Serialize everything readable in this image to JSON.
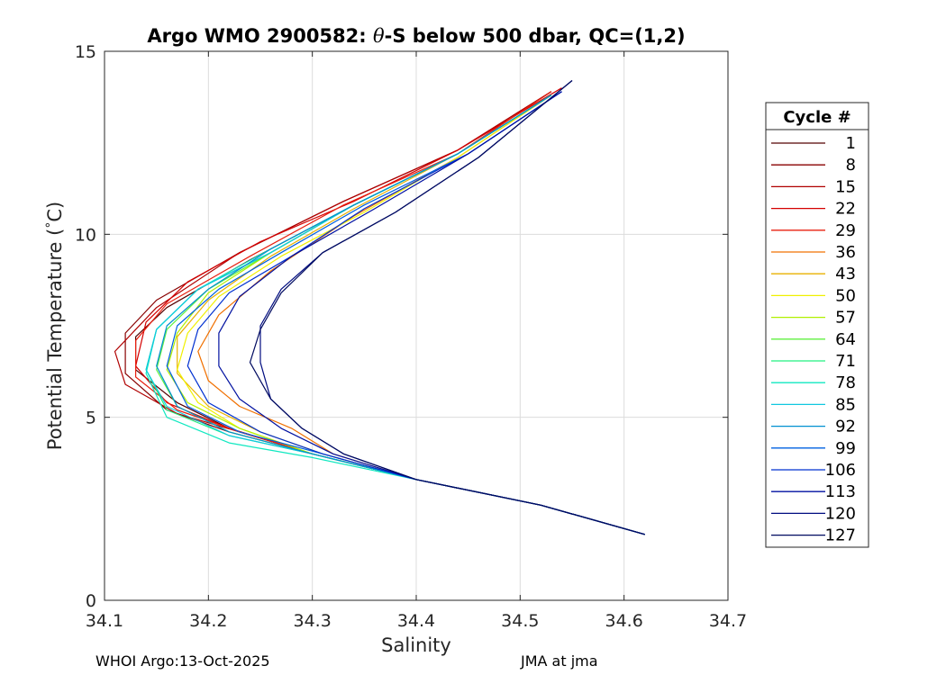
{
  "chart_data": {
    "type": "line",
    "title_prefix": "Argo WMO 2900582: ",
    "title_symbol": "θ",
    "title_suffix": "-S below 500 dbar,  QC=(1,2)",
    "xlabel": "Salinity",
    "ylabel_text": "Potential Temperature (",
    "ylabel_degree": "°",
    "ylabel_unit": "C)",
    "xlim": [
      34.1,
      34.7
    ],
    "ylim": [
      0,
      15
    ],
    "xticks": [
      "34.1",
      "34.2",
      "34.3",
      "34.4",
      "34.5",
      "34.6",
      "34.7"
    ],
    "yticks": [
      "0",
      "5",
      "10",
      "15"
    ],
    "grid": true,
    "legend_title": "Cycle #",
    "legend_position": "right",
    "legend": [
      {
        "name": "1",
        "color": "#550000"
      },
      {
        "name": "8",
        "color": "#880000"
      },
      {
        "name": "15",
        "color": "#b00000"
      },
      {
        "name": "22",
        "color": "#d40000"
      },
      {
        "name": "29",
        "color": "#e82010"
      },
      {
        "name": "36",
        "color": "#f07000"
      },
      {
        "name": "43",
        "color": "#e8b000"
      },
      {
        "name": "50",
        "color": "#f0f000"
      },
      {
        "name": "57",
        "color": "#b0f000"
      },
      {
        "name": "64",
        "color": "#60f040"
      },
      {
        "name": "71",
        "color": "#20f080"
      },
      {
        "name": "78",
        "color": "#10e8c0"
      },
      {
        "name": "85",
        "color": "#10c8e0"
      },
      {
        "name": "92",
        "color": "#0090d0"
      },
      {
        "name": "99",
        "color": "#0060e0"
      },
      {
        "name": "106",
        "color": "#0030d0"
      },
      {
        "name": "113",
        "color": "#0010a0"
      },
      {
        "name": "120",
        "color": "#000c80"
      },
      {
        "name": "127",
        "color": "#000a60"
      }
    ],
    "series": [
      {
        "name": "1",
        "color": "#550000",
        "x": [
          34.62,
          34.52,
          34.4,
          34.3,
          34.22,
          34.17,
          34.13,
          34.13,
          34.16,
          34.24,
          34.34,
          34.44,
          34.53
        ],
        "y": [
          1.8,
          2.6,
          3.3,
          4.0,
          4.7,
          5.4,
          6.3,
          7.2,
          8.0,
          9.3,
          10.8,
          12.2,
          13.9
        ]
      },
      {
        "name": "8",
        "color": "#880000",
        "x": [
          34.62,
          34.52,
          34.4,
          34.3,
          34.22,
          34.16,
          34.12,
          34.12,
          34.15,
          34.23,
          34.33,
          34.44,
          34.53
        ],
        "y": [
          1.8,
          2.6,
          3.3,
          4.0,
          4.6,
          5.2,
          6.2,
          7.3,
          8.2,
          9.5,
          10.9,
          12.3,
          13.9
        ]
      },
      {
        "name": "15",
        "color": "#b00000",
        "x": [
          34.62,
          34.52,
          34.4,
          34.3,
          34.23,
          34.17,
          34.12,
          34.11,
          34.15,
          34.23,
          34.33,
          34.44,
          34.53
        ],
        "y": [
          1.8,
          2.6,
          3.3,
          4.0,
          4.6,
          5.1,
          5.9,
          6.8,
          8.0,
          9.5,
          10.9,
          12.3,
          13.9
        ]
      },
      {
        "name": "22",
        "color": "#d40000",
        "x": [
          34.62,
          34.52,
          34.4,
          34.3,
          34.22,
          34.16,
          34.13,
          34.14,
          34.18,
          34.25,
          34.34,
          34.44,
          34.54
        ],
        "y": [
          1.8,
          2.6,
          3.3,
          4.0,
          4.7,
          5.4,
          6.4,
          7.6,
          8.7,
          9.8,
          10.9,
          12.3,
          14.0
        ]
      },
      {
        "name": "29",
        "color": "#e82010",
        "x": [
          34.62,
          34.52,
          34.4,
          34.3,
          34.23,
          34.17,
          34.13,
          34.13,
          34.16,
          34.24,
          34.33,
          34.44,
          34.53
        ],
        "y": [
          1.8,
          2.6,
          3.3,
          4.0,
          4.6,
          5.2,
          6.1,
          7.1,
          8.1,
          9.4,
          10.8,
          12.2,
          13.9
        ]
      },
      {
        "name": "36",
        "color": "#f07000",
        "x": [
          34.62,
          34.52,
          34.4,
          34.32,
          34.28,
          34.23,
          34.2,
          34.19,
          34.21,
          34.26,
          34.34,
          34.44,
          34.53
        ],
        "y": [
          1.8,
          2.6,
          3.3,
          4.0,
          4.7,
          5.3,
          6.0,
          6.8,
          7.8,
          9.0,
          10.5,
          12.1,
          13.8
        ]
      },
      {
        "name": "43",
        "color": "#e8b000",
        "x": [
          34.62,
          34.52,
          34.4,
          34.31,
          34.25,
          34.2,
          34.17,
          34.17,
          34.2,
          34.26,
          34.34,
          34.44,
          34.53
        ],
        "y": [
          1.8,
          2.6,
          3.3,
          4.0,
          4.6,
          5.3,
          6.2,
          7.2,
          8.2,
          9.4,
          10.7,
          12.2,
          13.8
        ]
      },
      {
        "name": "50",
        "color": "#f0f000",
        "x": [
          34.62,
          34.52,
          34.4,
          34.3,
          34.23,
          34.19,
          34.17,
          34.18,
          34.21,
          34.27,
          34.35,
          34.44,
          34.53
        ],
        "y": [
          1.8,
          2.6,
          3.3,
          4.0,
          4.7,
          5.4,
          6.3,
          7.3,
          8.3,
          9.4,
          10.6,
          12.1,
          13.8
        ]
      },
      {
        "name": "57",
        "color": "#b0f000",
        "x": [
          34.62,
          34.52,
          34.4,
          34.3,
          34.23,
          34.18,
          34.16,
          34.17,
          34.2,
          34.26,
          34.34,
          34.44,
          34.53
        ],
        "y": [
          1.8,
          2.6,
          3.3,
          4.0,
          4.7,
          5.4,
          6.3,
          7.3,
          8.4,
          9.5,
          10.8,
          12.2,
          13.8
        ]
      },
      {
        "name": "64",
        "color": "#60f040",
        "x": [
          34.62,
          34.52,
          34.4,
          34.3,
          34.22,
          34.17,
          34.15,
          34.16,
          34.2,
          34.26,
          34.34,
          34.44,
          34.53
        ],
        "y": [
          1.8,
          2.6,
          3.3,
          4.0,
          4.6,
          5.3,
          6.3,
          7.4,
          8.5,
          9.5,
          10.8,
          12.2,
          13.8
        ]
      },
      {
        "name": "71",
        "color": "#20f080",
        "x": [
          34.62,
          34.52,
          34.4,
          34.3,
          34.22,
          34.16,
          34.14,
          34.15,
          34.19,
          34.26,
          34.34,
          34.44,
          34.53
        ],
        "y": [
          1.8,
          2.6,
          3.3,
          4.0,
          4.5,
          5.2,
          6.3,
          7.4,
          8.5,
          9.5,
          10.8,
          12.2,
          13.8
        ]
      },
      {
        "name": "78",
        "color": "#10e8c0",
        "x": [
          34.62,
          34.52,
          34.4,
          34.3,
          34.22,
          34.16,
          34.14,
          34.15,
          34.19,
          34.26,
          34.34,
          34.44,
          34.53
        ],
        "y": [
          1.8,
          2.6,
          3.3,
          3.9,
          4.3,
          5.0,
          6.2,
          7.4,
          8.5,
          9.6,
          10.8,
          12.2,
          13.8
        ]
      },
      {
        "name": "85",
        "color": "#10c8e0",
        "x": [
          34.62,
          34.52,
          34.4,
          34.3,
          34.22,
          34.16,
          34.14,
          34.15,
          34.19,
          34.26,
          34.34,
          34.44,
          34.53
        ],
        "y": [
          1.8,
          2.6,
          3.3,
          4.0,
          4.5,
          5.3,
          6.3,
          7.4,
          8.5,
          9.5,
          10.8,
          12.2,
          13.8
        ]
      },
      {
        "name": "92",
        "color": "#0090d0",
        "x": [
          34.62,
          34.52,
          34.4,
          34.3,
          34.22,
          34.17,
          34.15,
          34.16,
          34.2,
          34.26,
          34.34,
          34.44,
          34.53
        ],
        "y": [
          1.8,
          2.6,
          3.3,
          4.0,
          4.6,
          5.3,
          6.4,
          7.5,
          8.5,
          9.6,
          10.8,
          12.2,
          13.8
        ]
      },
      {
        "name": "99",
        "color": "#0060e0",
        "x": [
          34.62,
          34.52,
          34.4,
          34.31,
          34.23,
          34.18,
          34.16,
          34.17,
          34.21,
          34.27,
          34.35,
          34.45,
          34.54
        ],
        "y": [
          1.8,
          2.6,
          3.3,
          4.0,
          4.6,
          5.3,
          6.4,
          7.5,
          8.5,
          9.5,
          10.8,
          12.2,
          13.9
        ]
      },
      {
        "name": "106",
        "color": "#0030d0",
        "x": [
          34.62,
          34.52,
          34.4,
          34.31,
          34.25,
          34.2,
          34.18,
          34.19,
          34.22,
          34.28,
          34.35,
          34.45,
          34.54
        ],
        "y": [
          1.8,
          2.6,
          3.3,
          4.0,
          4.6,
          5.4,
          6.4,
          7.4,
          8.4,
          9.4,
          10.7,
          12.2,
          13.9
        ]
      },
      {
        "name": "113",
        "color": "#0010a0",
        "x": [
          34.62,
          34.52,
          34.4,
          34.32,
          34.27,
          34.23,
          34.21,
          34.21,
          34.23,
          34.28,
          34.36,
          34.45,
          34.54
        ],
        "y": [
          1.8,
          2.6,
          3.3,
          4.0,
          4.7,
          5.5,
          6.4,
          7.3,
          8.3,
          9.4,
          10.7,
          12.2,
          13.9
        ]
      },
      {
        "name": "120",
        "color": "#000c80",
        "x": [
          34.62,
          34.52,
          34.4,
          34.33,
          34.29,
          34.26,
          34.25,
          34.25,
          34.27,
          34.31,
          34.38,
          34.46,
          34.55
        ],
        "y": [
          1.8,
          2.6,
          3.3,
          4.0,
          4.7,
          5.5,
          6.5,
          7.5,
          8.5,
          9.5,
          10.6,
          12.1,
          14.2
        ]
      },
      {
        "name": "127",
        "color": "#000a60",
        "x": [
          34.62,
          34.52,
          34.4,
          34.33,
          34.29,
          34.26,
          34.24,
          34.25,
          34.27,
          34.31,
          34.38,
          34.46,
          34.55
        ],
        "y": [
          1.8,
          2.6,
          3.3,
          4.0,
          4.7,
          5.5,
          6.5,
          7.4,
          8.4,
          9.5,
          10.6,
          12.1,
          14.2
        ]
      }
    ]
  },
  "footer": {
    "left": "WHOI Argo:13-Oct-2025",
    "right": "JMA at jma"
  }
}
